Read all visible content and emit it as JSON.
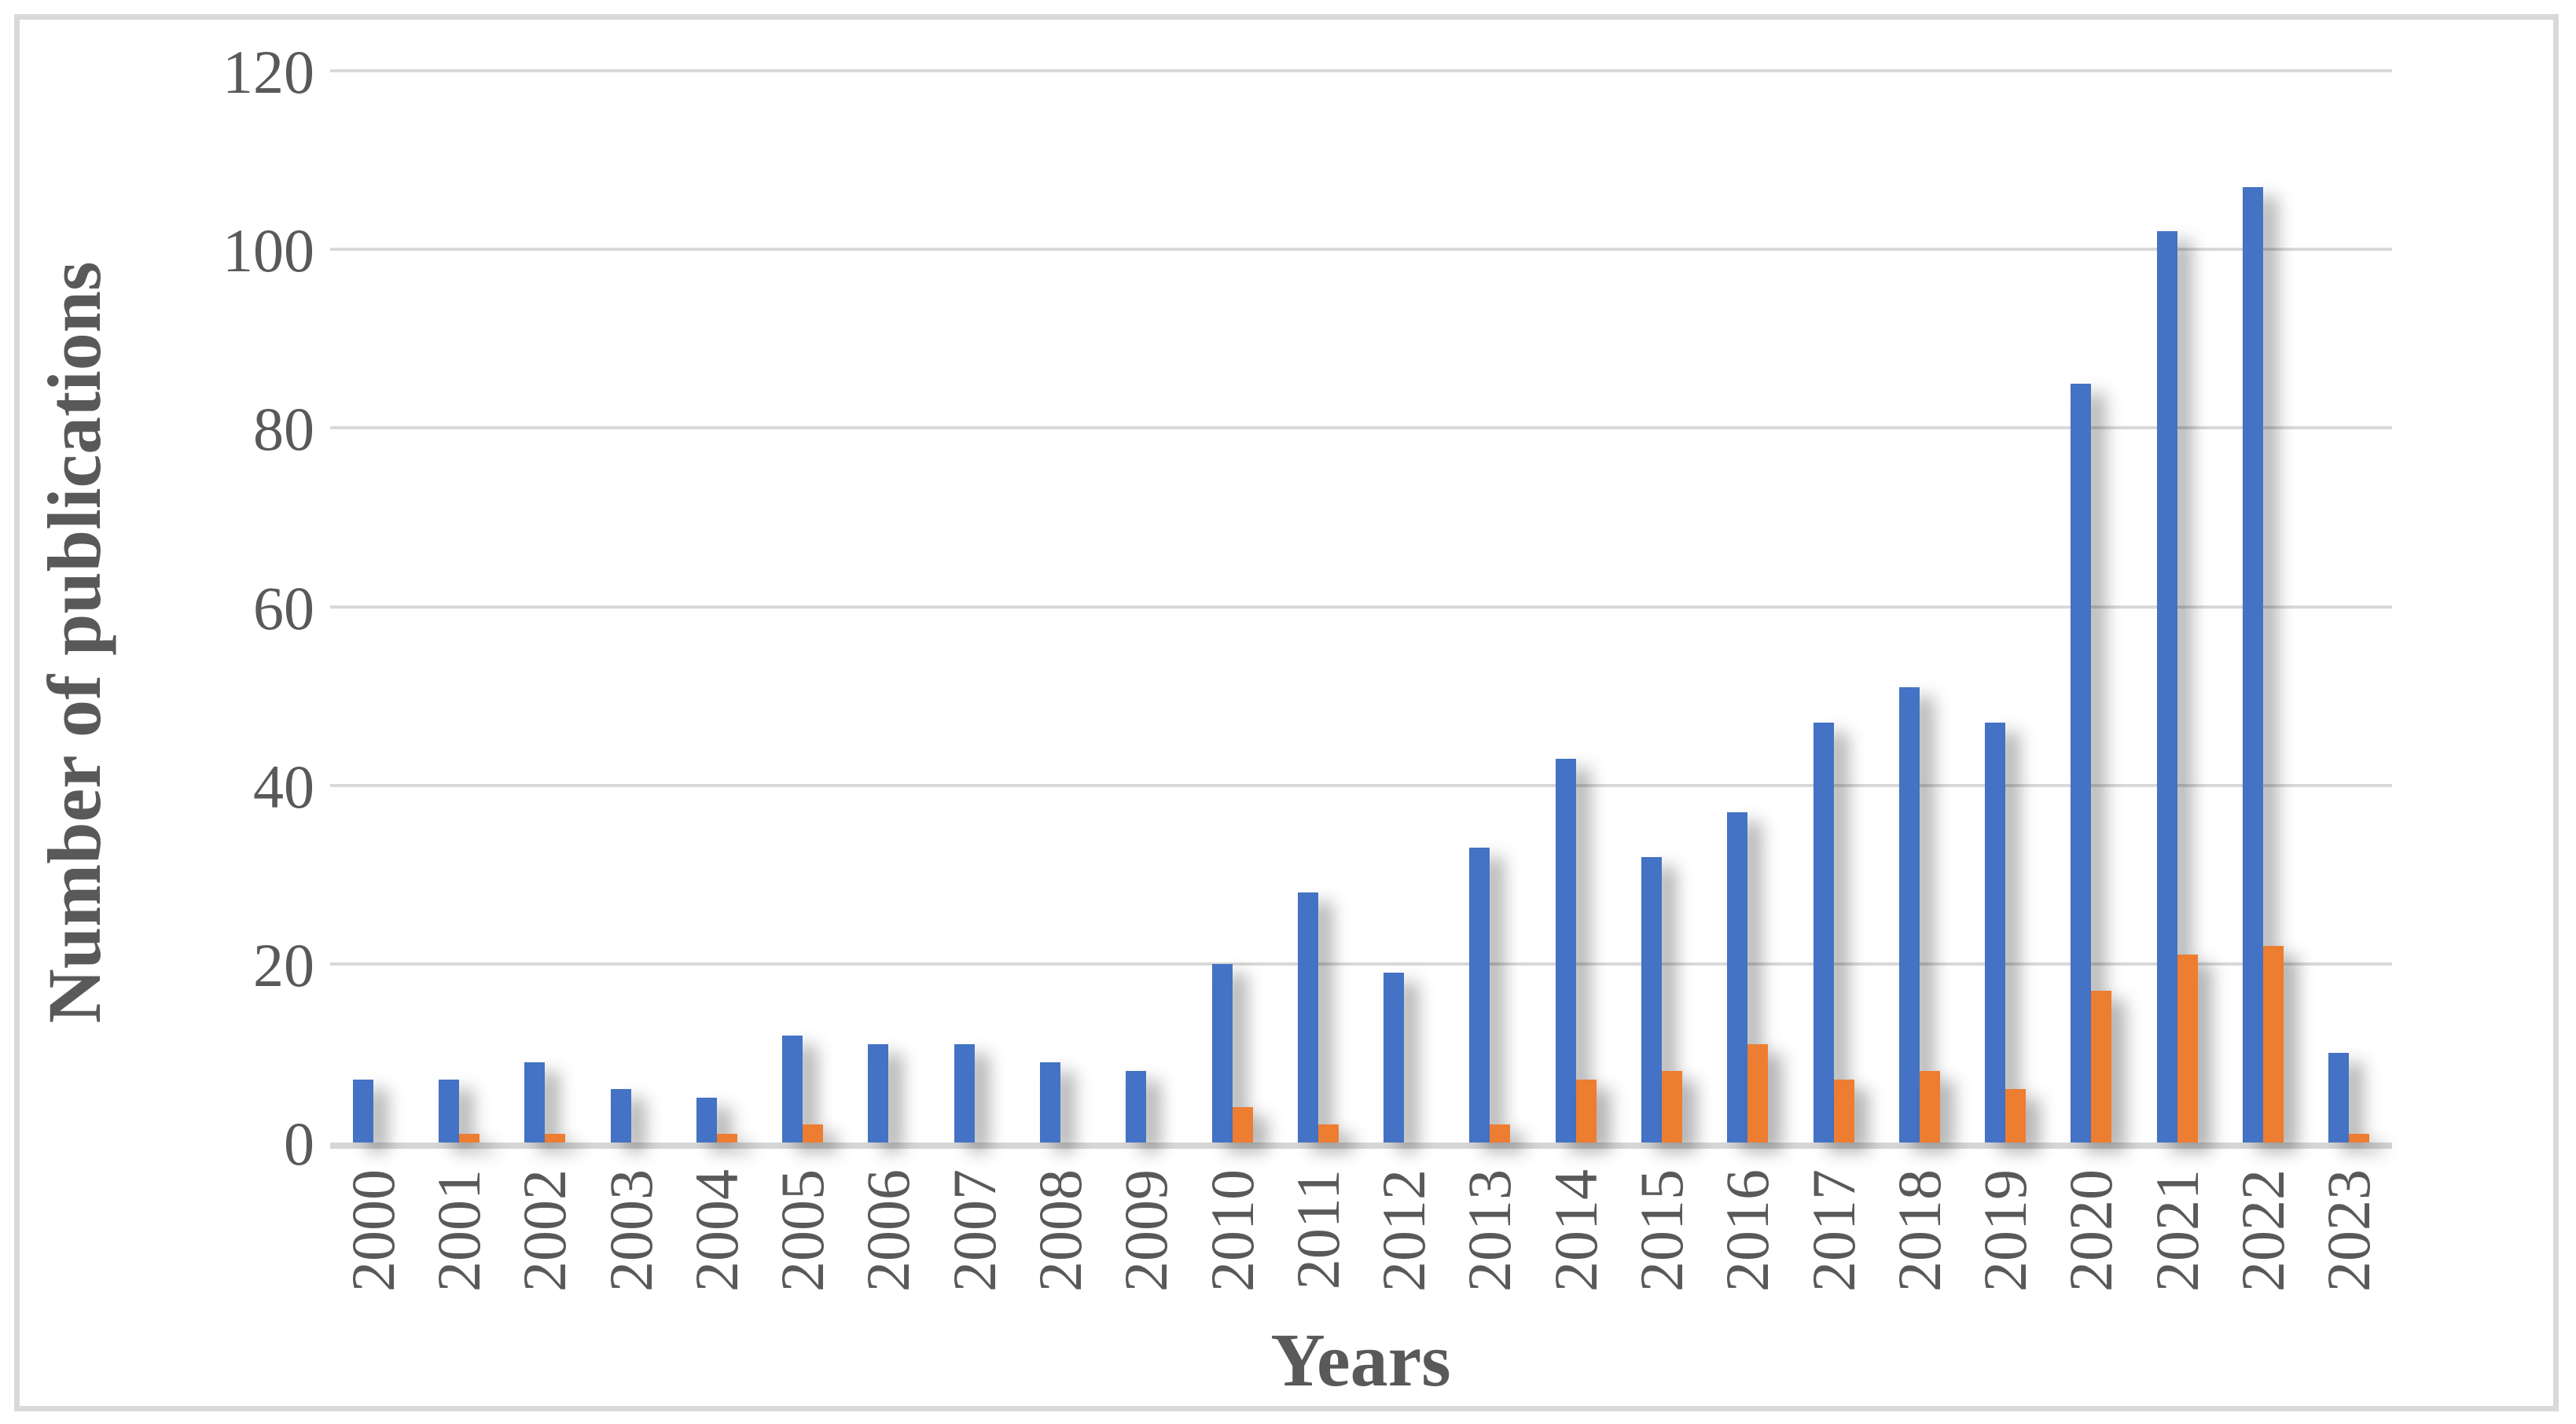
{
  "chart_data": {
    "type": "bar",
    "title": "",
    "xlabel": "Years",
    "ylabel": "Number of publications",
    "categories": [
      "2000",
      "2001",
      "2002",
      "2003",
      "2004",
      "2005",
      "2006",
      "2007",
      "2008",
      "2009",
      "2010",
      "2011",
      "2012",
      "2013",
      "2014",
      "2015",
      "2016",
      "2017",
      "2018",
      "2019",
      "2020",
      "2021",
      "2022",
      "2023"
    ],
    "series": [
      {
        "name": "series-blue",
        "color": "#4472C4",
        "values": [
          7,
          7,
          9,
          6,
          5,
          12,
          11,
          11,
          9,
          8,
          20,
          28,
          19,
          33,
          43,
          32,
          37,
          47,
          51,
          47,
          85,
          102,
          107,
          10
        ]
      },
      {
        "name": "series-orange",
        "color": "#ED7D31",
        "values": [
          0,
          1,
          1,
          0,
          1,
          2,
          0,
          0,
          0,
          0,
          4,
          2,
          0,
          2,
          7,
          8,
          11,
          7,
          8,
          6,
          17,
          21,
          22,
          1
        ]
      }
    ],
    "ylim": [
      0,
      120
    ],
    "yticks": [
      0,
      20,
      40,
      60,
      80,
      100,
      120
    ],
    "grid": true,
    "legend": "none"
  },
  "colors": {
    "grid": "#d9d9d9",
    "border": "#d9d9d9",
    "axis_text": "#595959",
    "background": "#ffffff"
  }
}
